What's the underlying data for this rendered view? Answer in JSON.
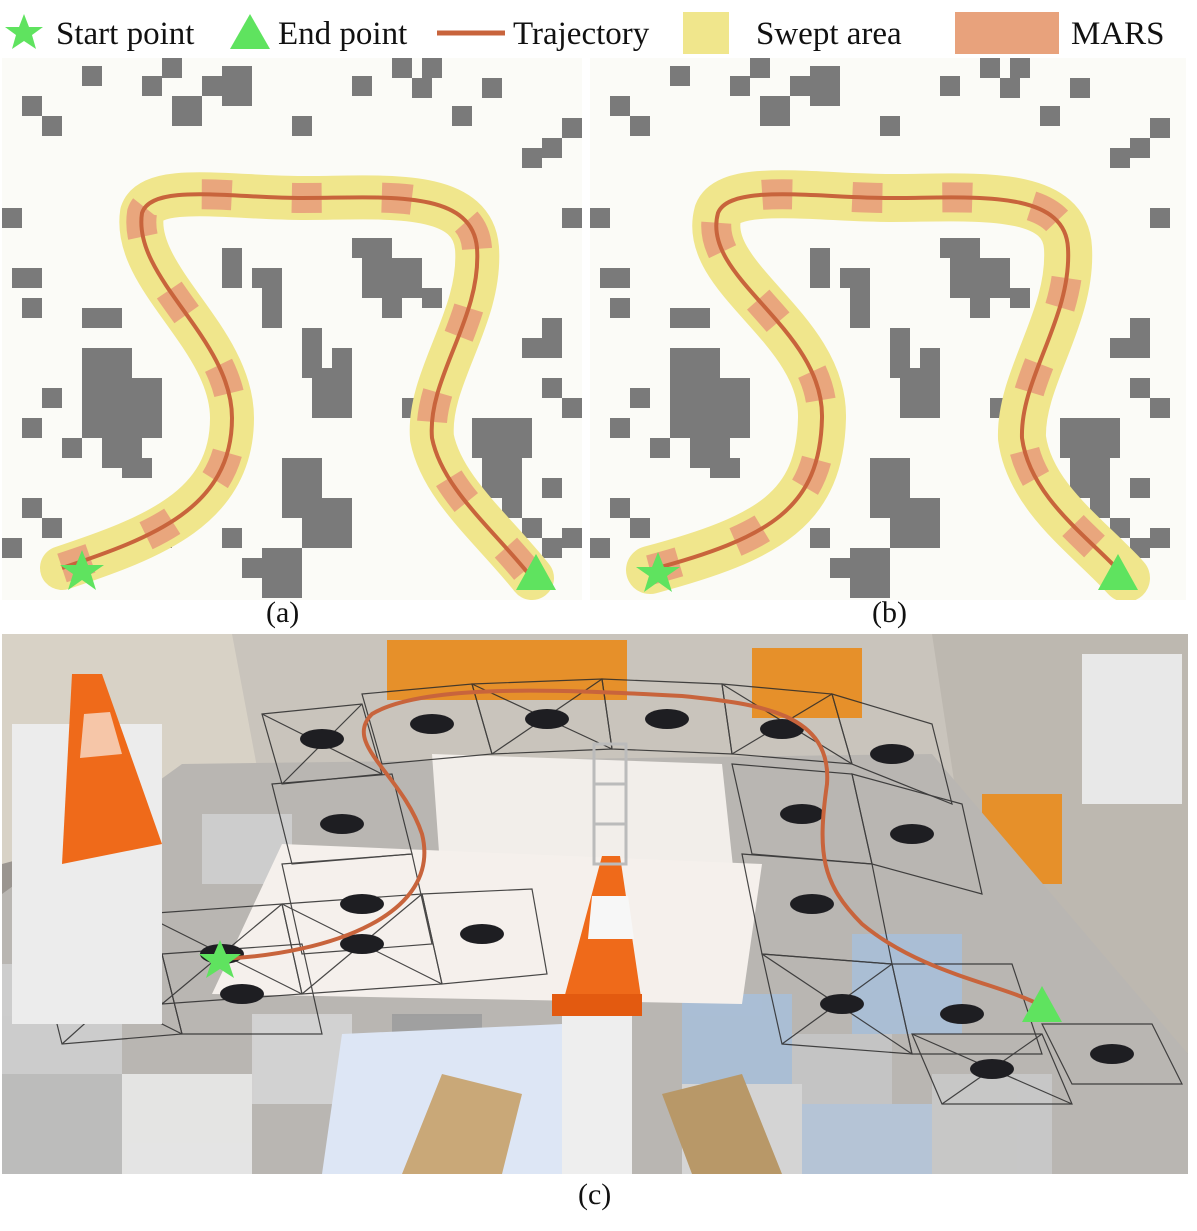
{
  "legend": {
    "start_label": "Start point",
    "end_label": "End point",
    "trajectory_label": "Trajectory",
    "swept_label": "Swept area",
    "mars_label": "MARS"
  },
  "colors": {
    "start_marker": "#5fe35f",
    "end_marker": "#5fe35f",
    "trajectory": "#c8643c",
    "swept_area": "#f0e68c",
    "mars": "#e8a27c",
    "obstacle": "#7a7a7a",
    "background": "#fbfbf7"
  },
  "captions": {
    "a": "(a)",
    "b": "(b)",
    "c": "(c)"
  },
  "icons": {
    "start": "star-icon",
    "end": "triangle-icon"
  }
}
